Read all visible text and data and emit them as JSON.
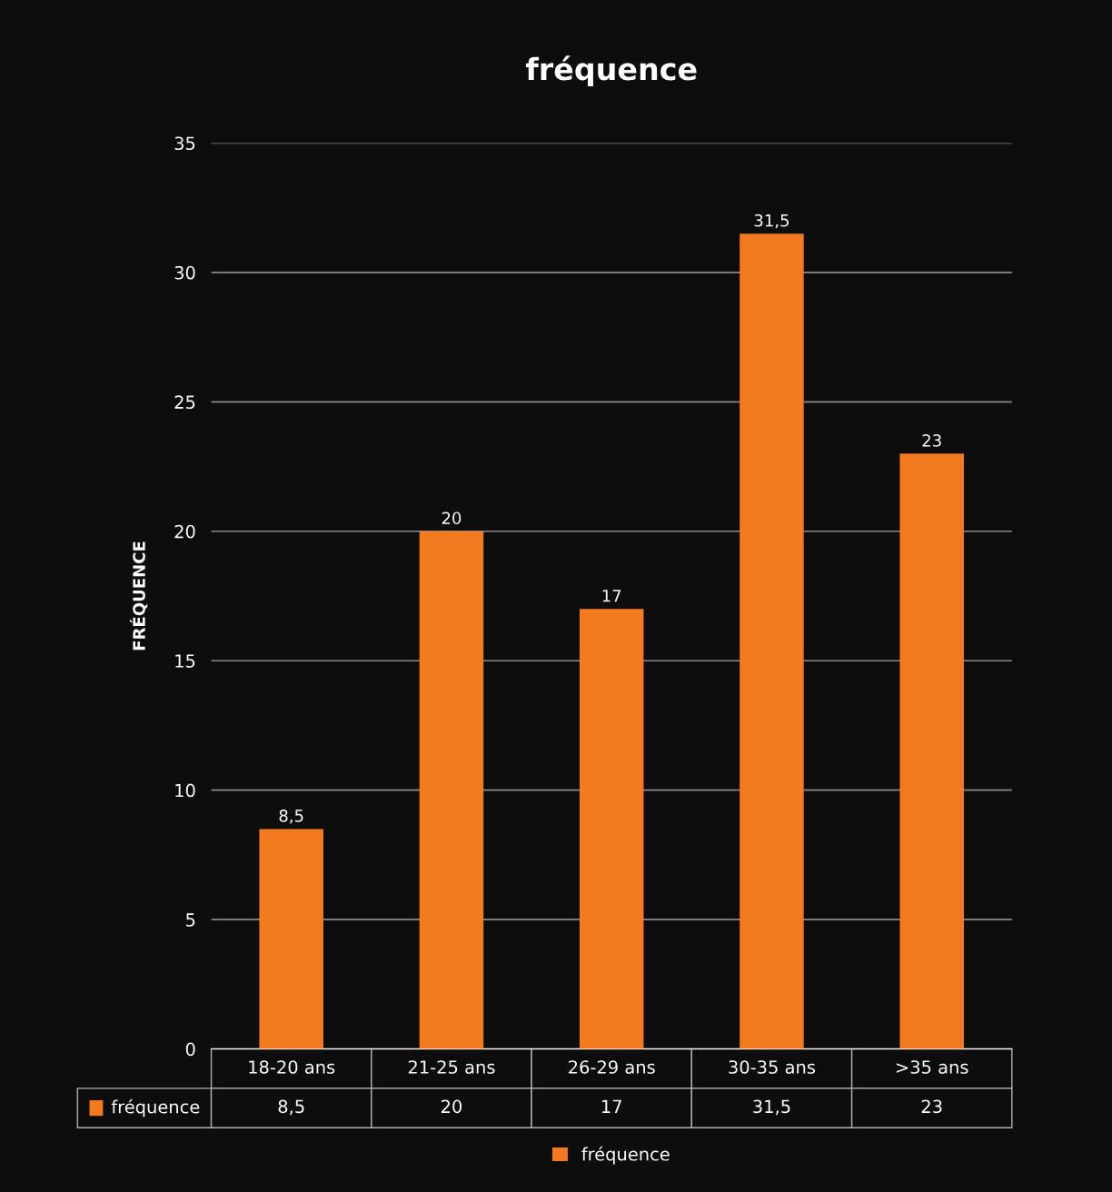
{
  "chart_data": {
    "type": "bar",
    "title": "fréquence",
    "ylabel": "FRÉQUENCE",
    "categories": [
      "18-20 ans",
      "21-25 ans",
      "26-29 ans",
      "30-35 ans",
      ">35 ans"
    ],
    "series": [
      {
        "name": "fréquence",
        "color": "#f47a20",
        "values": [
          8.5,
          20,
          17,
          31.5,
          23
        ],
        "value_labels": [
          "8,5",
          "20",
          "17",
          "31,5",
          "23"
        ]
      }
    ],
    "ylim": [
      0,
      35
    ],
    "yticks": [
      0,
      5,
      10,
      15,
      20,
      25,
      30,
      35
    ],
    "grid": "y",
    "legend": "bottom"
  }
}
